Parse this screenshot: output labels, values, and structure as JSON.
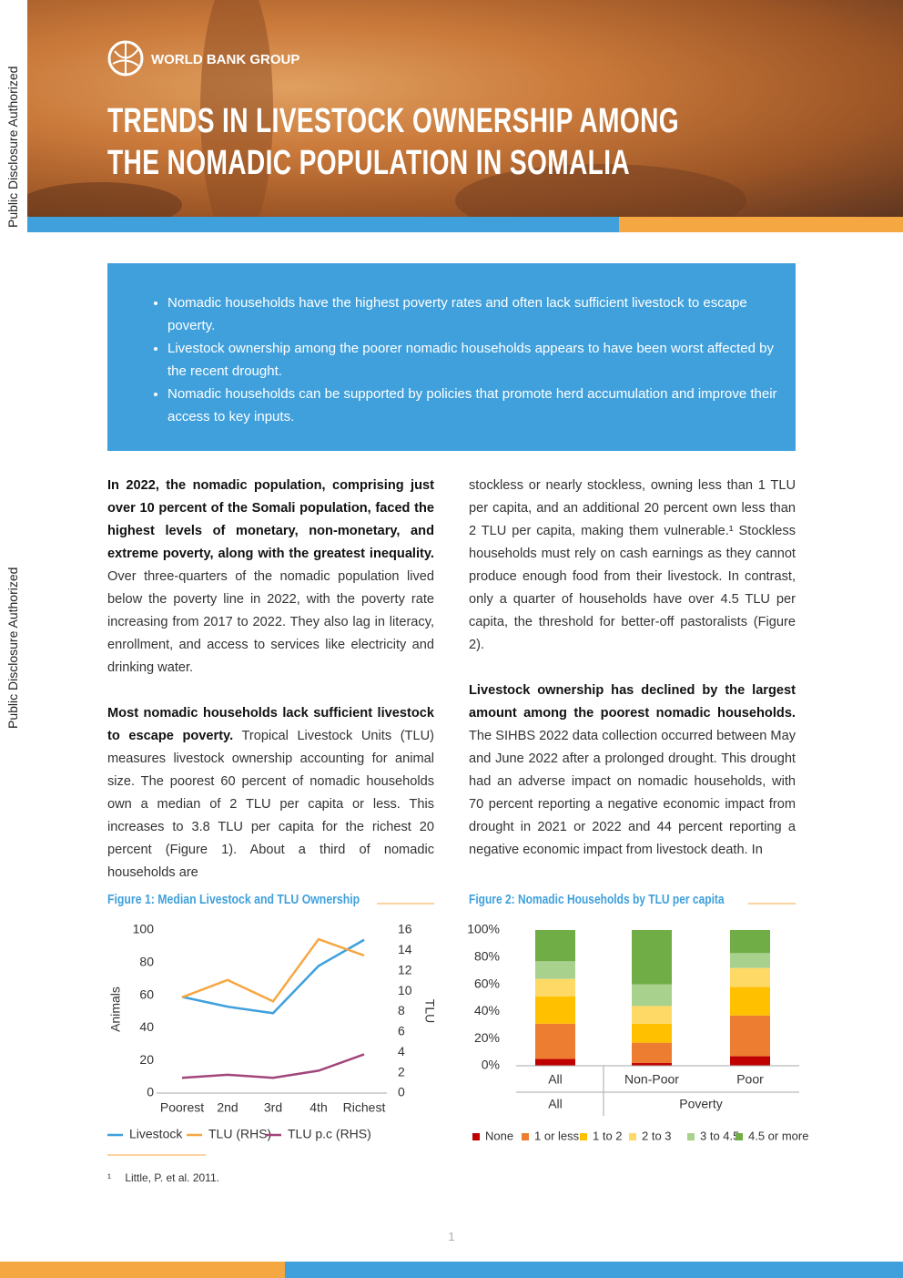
{
  "side_labels": [
    "Public Disclosure Authorized",
    "Public Disclosure Authorized"
  ],
  "header": {
    "logo": "WORLD BANK GROUP",
    "title_lines": [
      "TRENDS IN LIVESTOCK OWNERSHIP AMONG",
      "THE NOMADIC POPULATION IN SOMALIA"
    ]
  },
  "summary": [
    "Nomadic households have the highest poverty rates and often lack sufficient livestock to escape poverty.",
    "Livestock ownership among the poorer nomadic households appears to have been worst affected by the recent drought.",
    "Nomadic households can be supported by policies that promote herd accumulation and improve their access to key inputs."
  ],
  "body": {
    "left": [
      [
        {
          "bold": true,
          "text": "In 2022, the nomadic population, comprising just over 10 percent of the Somali population, faced the highest levels of monetary, non-monetary, and extreme poverty, along with the greatest inequality."
        },
        {
          "bold": false,
          "text": " Over three-quarters of the nomadic population lived below the poverty line in 2022, with the poverty rate increasing from 2017 to 2022. They also lag in literacy, enrollment, and access to services like electricity and drinking water."
        }
      ],
      [
        {
          "bold": true,
          "text": "Most nomadic households lack sufficient livestock to escape poverty."
        },
        {
          "bold": false,
          "text": " Tropical Livestock Units (TLU) measures livestock ownership accounting for animal size. The poorest 60 percent of nomadic households own a median of 2 TLU per capita or less. This increases to 3.8 TLU per capita for the richest 20 percent (Figure 1). About a third of nomadic households are"
        }
      ]
    ],
    "right": [
      [
        {
          "bold": false,
          "text": "stockless or nearly stockless, owning less than 1 TLU per capita, and an additional 20 percent own less than 2 TLU per capita, making them vulnerable.¹ Stockless households must rely on cash earnings as they cannot produce enough food from their livestock. In contrast, only a quarter of households have over 4.5 TLU per capita, the threshold for better-off pastoralists (Figure 2)."
        }
      ],
      [
        {
          "bold": true,
          "text": "Livestock ownership has declined by the largest amount among the poorest nomadic households."
        },
        {
          "bold": false,
          "text": " The SIHBS 2022 data collection occurred between May and June 2022 after a prolonged drought. This drought had an adverse impact on nomadic households, with 70 percent reporting a negative economic impact from drought in 2021 or 2022 and 44 percent reporting a negative economic impact from livestock death. In"
        }
      ]
    ]
  },
  "footnote": {
    "mark": "¹",
    "text": "Little, P. et al. 2011."
  },
  "page_number": "1",
  "chart_data": [
    {
      "type": "line",
      "title": "Figure 1: Median Livestock and TLU Ownership",
      "categories": [
        "Poorest",
        "2nd",
        "3rd",
        "4th",
        "Richest"
      ],
      "y_label": "Animals",
      "y2_label": "TLU",
      "ylim": [
        0,
        100
      ],
      "yticks": [
        0,
        20,
        40,
        60,
        80,
        100
      ],
      "y2lim": [
        0,
        16
      ],
      "y2ticks": [
        0,
        2,
        4,
        6,
        8,
        10,
        12,
        14,
        16
      ],
      "series": [
        {
          "name": "Livestock",
          "color": "#3fa0dc",
          "values": [
            59,
            53,
            49,
            78,
            94
          ]
        },
        {
          "name": "TLU (RHS)",
          "color": "#f5a742",
          "axis": "y2",
          "values": [
            9.4,
            11.1,
            9.0,
            15.1,
            13.5
          ]
        },
        {
          "name": "TLU p.c (RHS)",
          "color": "#a2457a",
          "axis": "y2",
          "values": [
            1.5,
            1.8,
            1.5,
            2.2,
            3.8
          ]
        }
      ]
    },
    {
      "type": "stacked_bar",
      "title": "Figure 2: Nomadic Households by TLU per capita",
      "categories": [
        "All",
        "Non-Poor",
        "Poor"
      ],
      "groups": [
        {
          "name": "All",
          "categories": [
            "All"
          ]
        },
        {
          "name": "Poverty",
          "categories": [
            "Non-Poor",
            "Poor"
          ]
        }
      ],
      "ylim": [
        0,
        100
      ],
      "yticks": [
        {
          "value": 0,
          "label": "0%"
        },
        {
          "value": 20,
          "label": "20%"
        },
        {
          "value": 40,
          "label": "40%"
        },
        {
          "value": 60,
          "label": "60%"
        },
        {
          "value": 80,
          "label": "80%"
        },
        {
          "value": 100,
          "label": "100%"
        }
      ],
      "series": [
        {
          "name": "None",
          "color": "#c00000",
          "values": [
            5,
            2,
            7
          ]
        },
        {
          "name": "1 or less",
          "color": "#ed7d31",
          "values": [
            26,
            15,
            30
          ]
        },
        {
          "name": "1 to 2",
          "color": "#ffc000",
          "values": [
            20,
            14,
            21
          ]
        },
        {
          "name": "2 to 3",
          "color": "#ffd966",
          "values": [
            13,
            13,
            14
          ]
        },
        {
          "name": "3 to 4.5",
          "color": "#a9d18e",
          "values": [
            13,
            16,
            11
          ]
        },
        {
          "name": "4.5 or more",
          "color": "#70ad47",
          "values": [
            23,
            40,
            17
          ]
        }
      ]
    }
  ]
}
